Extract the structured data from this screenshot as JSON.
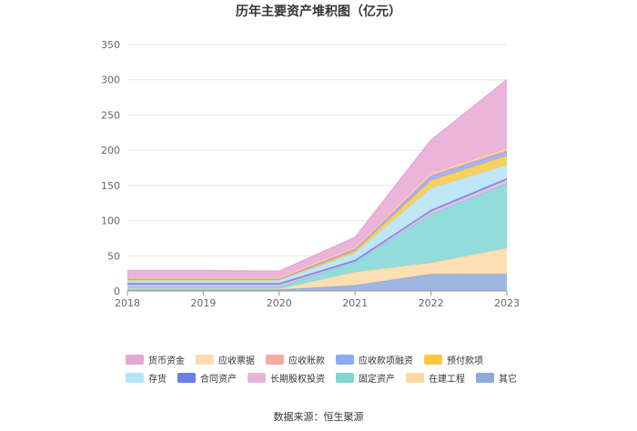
{
  "chart_data": {
    "type": "area",
    "stacked": true,
    "title": "历年主要资产堆积图（亿元）",
    "categories": [
      "2018",
      "2019",
      "2020",
      "2021",
      "2022",
      "2023"
    ],
    "ylim": [
      0,
      350
    ],
    "yticks": [
      0,
      50,
      100,
      150,
      200,
      250,
      300,
      350
    ],
    "grid": true,
    "legend_position": "bottom",
    "series": [
      {
        "name": "其它",
        "color": "#8eaadb",
        "values": [
          2,
          2,
          2,
          8,
          24,
          24
        ]
      },
      {
        "name": "在建工程",
        "color": "#fbd9a4",
        "values": [
          1,
          1,
          1,
          19,
          16,
          37
        ]
      },
      {
        "name": "固定资产",
        "color": "#7fd6d6",
        "values": [
          3,
          3,
          3,
          14,
          69,
          92
        ]
      },
      {
        "name": "长期股权投资",
        "color": "#e6b5db",
        "values": [
          3,
          3,
          3,
          1,
          4,
          5
        ]
      },
      {
        "name": "合同资产",
        "color": "#6b7de8",
        "values": [
          2,
          2,
          2,
          2,
          2,
          2
        ]
      },
      {
        "name": "存货",
        "color": "#b5e3f7",
        "values": [
          4,
          4,
          4,
          10,
          31,
          19
        ]
      },
      {
        "name": "预付款项",
        "color": "#fcc843",
        "values": [
          1,
          1,
          1,
          3,
          11,
          13
        ]
      },
      {
        "name": "应收款项融资",
        "color": "#8faaf4",
        "values": [
          1,
          1,
          1,
          2,
          6,
          6
        ]
      },
      {
        "name": "应收账款",
        "color": "#f7a9a2",
        "values": [
          1,
          1,
          1,
          2,
          2,
          2
        ]
      },
      {
        "name": "应收票据",
        "color": "#fcdcb0",
        "values": [
          1,
          1,
          1,
          1,
          2,
          2
        ]
      },
      {
        "name": "货币资金",
        "color": "#e6a8d2",
        "values": [
          10,
          10,
          9,
          14,
          47,
          98
        ]
      }
    ],
    "legend_order": [
      "货币资金",
      "应收票据",
      "应收账款",
      "应收款项融资",
      "预付款项",
      "存货",
      "合同资产",
      "长期股权投资",
      "固定资产",
      "在建工程",
      "其它"
    ]
  },
  "source": "数据来源：恒生聚源"
}
